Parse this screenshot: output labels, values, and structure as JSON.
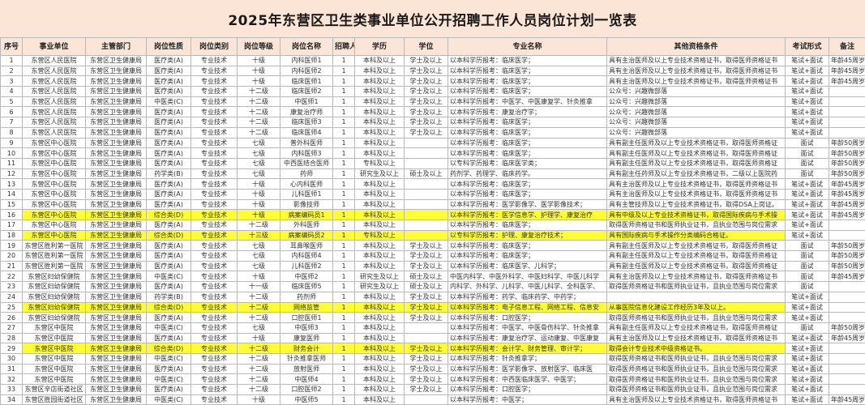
{
  "title": "2025年东营区卫生类事业单位公开招聘工作人员岗位计划一览表",
  "colors": {
    "header_bg": "#fbe5d6",
    "highlight": "#fefe33",
    "border": "#b9b9b9"
  },
  "columns": [
    "序号",
    "事业单位",
    "主管部门",
    "岗位性质",
    "岗位类别",
    "岗位等级",
    "岗位名称",
    "招聘人数",
    "学历",
    "学位",
    "专业名称",
    "其他资格条件",
    "考试形式",
    "备注"
  ],
  "rows": [
    {
      "cells": [
        "1",
        "东营区人民医院",
        "东营区卫生健康局",
        "医疗类(A)",
        "专业技术",
        "十级",
        "内科医师1",
        "1",
        "本科及以上",
        "学士及以上",
        "以本科学历报考：临床医学；",
        "具有主治医师及以上专业技术资格证书，取得医师资格证书",
        "笔试+面试",
        "年龄45周岁"
      ],
      "highlight": false
    },
    {
      "cells": [
        "2",
        "东营区人民医院",
        "东营区卫生健康局",
        "医疗类(A)",
        "专业技术",
        "十级",
        "内科医师2",
        "1",
        "本科及以上",
        "学士及以上",
        "以本科学历报考：临床医学；",
        "具有主治医师及以上专业技术资格证书，取得医师资格证书",
        "笔试+面试",
        "年龄45周岁"
      ],
      "highlight": false
    },
    {
      "cells": [
        "3",
        "东营区人民医院",
        "东营区卫生健康局",
        "医疗类(A)",
        "专业技术",
        "十级",
        "临床医师1",
        "1",
        "本科及以上",
        "学士及以上",
        "以本科学历报考：临床医学；",
        "具有主治医师及以上专业技术资格证书，取得医师资格证书",
        "笔试+面试",
        "年龄45周岁"
      ],
      "highlight": false
    },
    {
      "cells": [
        "4",
        "东营区人民医院",
        "东营区卫生健康局",
        "医疗类(A)",
        "专业技术",
        "十二级",
        "临床医师2",
        "1",
        "本科及以上",
        "学士及以上",
        "以本科学历报考：临床医学；",
        "公众号：兴趣微部落",
        "笔试+面试",
        ""
      ],
      "highlight": false
    },
    {
      "cells": [
        "5",
        "东营区人民医院",
        "东营区卫生健康局",
        "中医类(C)",
        "专业技术",
        "十二级",
        "中医师1",
        "1",
        "本科及以上",
        "学士及以上",
        "以本科学历报考：中医学、中医康复学、针灸推拿",
        "公众号：兴趣微部落",
        "笔试+面试",
        ""
      ],
      "highlight": false
    },
    {
      "cells": [
        "6",
        "东营区人民医院",
        "东营区卫生健康局",
        "医疗类(A)",
        "专业技术",
        "十二级",
        "康复治疗师",
        "1",
        "本科及以上",
        "学士及以上",
        "以本科学历报考：康复治疗学；",
        "公众号：兴趣微部落",
        "笔试+面试",
        ""
      ],
      "highlight": false
    },
    {
      "cells": [
        "7",
        "东营区人民医院",
        "东营区卫生健康局",
        "医疗类(A)",
        "专业技术",
        "十二级",
        "临床医师3",
        "1",
        "本科及以上",
        "学士及以上",
        "以本科学历报考：临床医学；",
        "公众号：兴趣微部落",
        "笔试+面试",
        ""
      ],
      "highlight": false
    },
    {
      "cells": [
        "8",
        "东营区人民医院",
        "东营区卫生健康局",
        "医疗类(A)",
        "专业技术",
        "十二级",
        "临床医师4",
        "1",
        "本科及以上",
        "学士及以上",
        "以本科学历报考：临床医学；",
        "公众号：兴趣微部落",
        "笔试+面试",
        ""
      ],
      "highlight": false
    },
    {
      "cells": [
        "9",
        "东营区中心医院",
        "东营区卫生健康局",
        "医疗类(A)",
        "专业技术",
        "七级",
        "普外科医师",
        "1",
        "本科及以上",
        "",
        "以本科学历报考：临床医学；",
        "具有副主任医师及以上专业技术资格证书，取得医师资格证",
        "面试",
        "年龄50周岁"
      ],
      "highlight": false
    },
    {
      "cells": [
        "10",
        "东营区中心医院",
        "东营区卫生健康局",
        "医疗类(A)",
        "专业技术",
        "七级",
        "内科医师3",
        "1",
        "本科及以上",
        "",
        "以本科学历报考：临床医学；",
        "具有副主任医师及以上专业技术资格证书，取得医师资格证",
        "面试",
        "年龄50周岁"
      ],
      "highlight": false
    },
    {
      "cells": [
        "11",
        "东营区中心医院",
        "东营区卫生健康局",
        "医疗类(A)",
        "专业技术",
        "七级",
        "中西医结合医师",
        "1",
        "专科及以上",
        "",
        "以专科学历报考：临床医学类；",
        "具有副主任医师及以上专业技术资格证书，取得医师资格证",
        "面试",
        "年龄50周岁"
      ],
      "highlight": false
    },
    {
      "cells": [
        "12",
        "东营区中心医院",
        "东营区卫生健康局",
        "药学类(B)",
        "专业技术",
        "七级",
        "药师",
        "1",
        "研究生及以上",
        "硕士及以上",
        "药剂学、药理学、临床药学。",
        "具有副主任药师及以上专业技术资格证书，二级以上医院药",
        "面试",
        "年龄50周岁"
      ],
      "highlight": false
    },
    {
      "cells": [
        "13",
        "东营区中心医院",
        "东营区卫生健康局",
        "医疗类(A)",
        "专业技术",
        "十级",
        "心内科医师",
        "1",
        "本科及以上",
        "",
        "以本科学历报考：临床医学；",
        "具有主治医师及以上专业技术资格证书，取得医师资格证书",
        "笔试+面试",
        "年龄45周岁"
      ],
      "highlight": false
    },
    {
      "cells": [
        "14",
        "东营区中心医院",
        "东营区卫生健康局",
        "医疗类(A)",
        "专业技术",
        "十级",
        "儿科医师1",
        "1",
        "本科及以上",
        "",
        "以本科学历报考：临床医学；",
        "具有主治医师及以上专业技术资格证书，取得医师资格证书",
        "笔试+面试",
        "年龄45周岁"
      ],
      "highlight": false
    },
    {
      "cells": [
        "15",
        "东营区中心医院",
        "东营区卫生健康局",
        "医疗类(A)",
        "专业技术",
        "十级",
        "影像技师",
        "1",
        "本科及以上",
        "",
        "以本科学历报考：医学影像学、医学影像技术；",
        "具有主管技师及以上专业技术资格证书，取得DSA上岗证。",
        "笔试+面试",
        "年龄45周岁"
      ],
      "highlight": false
    },
    {
      "cells": [
        "16",
        "东营区中心医院",
        "东营区卫生健康局",
        "综合类(D)",
        "专业技术",
        "十级",
        "病案编码员1",
        "1",
        "本科及以上",
        "",
        "以本科学历报考：医学信息学、护理学、康复治疗",
        "具有中级及以上专业技术资格证书，取得国际疾病与手术操",
        "笔试+面试",
        "年龄45周岁"
      ],
      "highlight": true
    },
    {
      "cells": [
        "17",
        "东营区中心医院",
        "东营区卫生健康局",
        "医疗类(A)",
        "专业技术",
        "十二级",
        "外科医师",
        "1",
        "本科及以上",
        "",
        "以本科学历报考：临床医学；",
        "取得医师资格证书和医师执业证书，且执业范围与岗位需求",
        "笔试+面试",
        ""
      ],
      "highlight": false
    },
    {
      "cells": [
        "18",
        "东营区中心医院",
        "东营区卫生健康局",
        "综合类(D)",
        "专业技术",
        "十三级",
        "病案编码员2",
        "1",
        "专科及以上",
        "",
        "以专科学历报考：护理、康复治疗技术；",
        "具有国际疾病与手术操作分类编码合格证。",
        "笔试+面试",
        ""
      ],
      "highlight": true
    },
    {
      "cells": [
        "19",
        "东营区胜利第一医院",
        "东营区卫生健康局",
        "医疗类(A)",
        "专业技术",
        "七级",
        "耳鼻喉医师",
        "1",
        "本科及以上",
        "学士及以上",
        "以本科学历报考：临床医学；",
        "具有副主任医师及以上专业技术资格证书，取得医师资格证",
        "面试",
        "年龄50周岁"
      ],
      "highlight": false
    },
    {
      "cells": [
        "20",
        "东营区胜利第一医院",
        "东营区卫生健康局",
        "医疗类(A)",
        "专业技术",
        "七级",
        "内科医师4",
        "1",
        "本科及以上",
        "学士及以上",
        "以本科学历报考：临床医学；",
        "具有副主任医师及以上专业技术资格证书，取得医师资格证",
        "面试",
        "年龄50周岁"
      ],
      "highlight": false
    },
    {
      "cells": [
        "21",
        "东营区胜利第一医院",
        "东营区卫生健康局",
        "医疗类(A)",
        "专业技术",
        "七级",
        "儿科医师2",
        "1",
        "本科及以上",
        "学士及以上",
        "以本科学历报考：临床医学、儿科学；",
        "具有副主任医师及以上专业技术资格证书，取得医师资格证",
        "面试",
        "年龄50周岁"
      ],
      "highlight": false
    },
    {
      "cells": [
        "22",
        "东营区妇幼保健院",
        "东营区卫生健康局",
        "中医类(C)",
        "专业技术",
        "十级",
        "中医师2",
        "1",
        "研究生及以上",
        "硕士及以上",
        "中医内科学、中医外科学、中医妇科学、中医儿科学",
        "具有主治医师及以上专业技术资格证书，取得医师资格证书",
        "面试",
        "年龄45周岁"
      ],
      "highlight": false
    },
    {
      "cells": [
        "23",
        "东营区妇幼保健院",
        "东营区卫生健康局",
        "医疗类(A)",
        "专业技术",
        "十一级",
        "临床医师5",
        "1",
        "研究生及以上",
        "硕士及以上",
        "内科学、外科学、儿科学、中医儿科学、全科医学、",
        "取得医师资格证书和医师执业证书，且执业范围与岗位需求",
        "面试",
        ""
      ],
      "highlight": false
    },
    {
      "cells": [
        "24",
        "东营区妇幼保健院",
        "东营区卫生健康局",
        "药学类(B)",
        "专业技术",
        "十二级",
        "药剂师",
        "1",
        "本科及以上",
        "学士及以上",
        "以本科学历报考：药学、临床药学、中药学；",
        "",
        "笔试+面试",
        ""
      ],
      "highlight": false
    },
    {
      "cells": [
        "25",
        "东营区妇幼保健院",
        "东营区卫生健康局",
        "综合类(D)",
        "专业技术",
        "十二级",
        "网络监管",
        "1",
        "本科及以上",
        "学士及以上",
        "以本科学历报考：电子信息工程、网络工程、信息安",
        "从事医院信息化建设工作经历3年及以上。",
        "笔试+面试",
        ""
      ],
      "highlight": true
    },
    {
      "cells": [
        "26",
        "东营区妇幼保健院",
        "东营区卫生健康局",
        "医疗类(A)",
        "专业技术",
        "十二级",
        "口腔医师1",
        "1",
        "本科及以上",
        "学士及以上",
        "以本科学历报考：口腔医学；",
        "取得医师资格证书和医师执业证书，且执业范围与岗位需求",
        "笔试+面试",
        ""
      ],
      "highlight": false
    },
    {
      "cells": [
        "27",
        "东营区中医院",
        "东营区卫生健康局",
        "中医类(C)",
        "专业技术",
        "七级",
        "中医师3",
        "1",
        "本科及以上",
        "",
        "以本科学历报考：中医学、中医骨伤科学、针灸推拿",
        "具有副主任医师及以上专业技术资格证书，取得医师资格证",
        "面试",
        "年龄50周岁"
      ],
      "highlight": false
    },
    {
      "cells": [
        "28",
        "东营区中医院",
        "东营区卫生健康局",
        "医疗类(A)",
        "专业技术",
        "十级",
        "康复医师",
        "1",
        "本科及以上",
        "",
        "以本科学历报考：康复治疗学、运动康复、中医康复",
        "具有主治医师及以上专业技术资格证书，取得医师资格证书",
        "笔试+面试",
        "年龄45周岁"
      ],
      "highlight": false
    },
    {
      "cells": [
        "29",
        "东营区中医院",
        "东营区卫生健康局",
        "综合类(D)",
        "专业技术",
        "十二级",
        "财务会计",
        "1",
        "本科及以上",
        "学士及以上",
        "以本科学历报考：会计学、财务管理、审计学；",
        "取得会计专业技术中级资格证书。",
        "笔试+面试",
        ""
      ],
      "highlight": true
    },
    {
      "cells": [
        "30",
        "东营区中医院",
        "东营区卫生健康局",
        "中医类(C)",
        "专业技术",
        "十二级",
        "针灸推拿医师",
        "1",
        "本科及以上",
        "学士及以上",
        "以本科学历报考：针灸推拿学；",
        "取得医师资格证书和医师执业证书，且执业范围与岗位需求",
        "笔试+面试",
        ""
      ],
      "highlight": false
    },
    {
      "cells": [
        "31",
        "东营区中医院",
        "东营区卫生健康局",
        "医疗类(A)",
        "专业技术",
        "十二级",
        "放射医师",
        "1",
        "本科及以上",
        "学士及以上",
        "以本科学历报考：医学影像学、放射医学、临床医",
        "取得医师资格证书和医师执业证书，且执业范围与岗位需求",
        "笔试+面试",
        ""
      ],
      "highlight": false
    },
    {
      "cells": [
        "32",
        "东营区中医院",
        "东营区卫生健康局",
        "中医类(C)",
        "专业技术",
        "十二级",
        "中医师4",
        "1",
        "本科及以上",
        "学士及以上",
        "以本科学历报考：中西医临床医学、中医学；",
        "取得医师资格证书和医师执业证书，且执业范围与岗位需求",
        "笔试+面试",
        ""
      ],
      "highlight": false
    },
    {
      "cells": [
        "33",
        "东营区辛店街道社区",
        "东营区卫生健康局",
        "医疗类(A)",
        "专业技术",
        "十二级",
        "口腔医师2",
        "1",
        "本科及以上",
        "学士及以上",
        "以本科学历报考：口腔医学；",
        "取得医师资格证书和医师执业证书，且执业范围与岗位需求",
        "笔试+面试",
        ""
      ],
      "highlight": false
    },
    {
      "cells": [
        "34",
        "东营区胜园街道社区",
        "东营区卫生健康局",
        "中医类(C)",
        "专业技术",
        "十级",
        "中医师5",
        "1",
        "本科及以上",
        "",
        "以本科学历报考：中医学；",
        "具有主治医师及以上专业技术资格证书，取得医师资格证书",
        "笔试+面试",
        "年龄45周岁"
      ],
      "highlight": false
    }
  ]
}
